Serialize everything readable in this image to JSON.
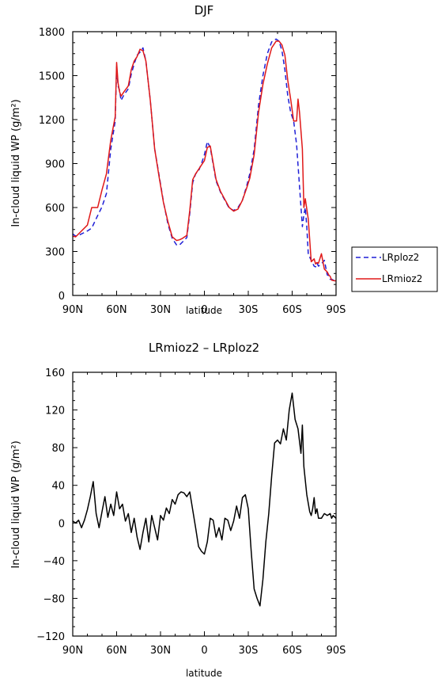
{
  "chart_data": [
    {
      "type": "line",
      "title": "DJF",
      "xlabel": "latitude",
      "ylabel": "In-cloud liquid WP  (g/m²)",
      "x_ticks": [
        "90N",
        "60N",
        "30N",
        "0",
        "30S",
        "60S",
        "90S"
      ],
      "xlim": [
        90,
        -90
      ],
      "ylim": [
        0,
        1800
      ],
      "y_ticks": [
        0,
        300,
        600,
        900,
        1200,
        1500,
        1800
      ],
      "grid": false,
      "legend_placement": "outside-right",
      "series": [
        {
          "name": "LRploz2",
          "color": "#1f1fd6",
          "dash": "dashed",
          "x": [
            90,
            88,
            85,
            80,
            77,
            73,
            70,
            67,
            64,
            61,
            60,
            59,
            58,
            57,
            55,
            52,
            50,
            48,
            46,
            44,
            42,
            40,
            37,
            34,
            31,
            28,
            25,
            22,
            19,
            17,
            15,
            12,
            10,
            8,
            6,
            4,
            2,
            0,
            -2,
            -4,
            -6,
            -8,
            -11,
            -14,
            -17,
            -20,
            -23,
            -26,
            -29,
            -31,
            -34,
            -37,
            -40,
            -43,
            -46,
            -49,
            -51,
            -53,
            -55,
            -57,
            -59,
            -61,
            -63,
            -65,
            -67,
            -68,
            -69,
            -70,
            -71,
            -73,
            -75,
            -76,
            -77,
            -78,
            -80,
            -82,
            -84,
            -85,
            -86,
            -87,
            -89,
            -90
          ],
          "y": [
            420,
            405,
            415,
            440,
            460,
            545,
            605,
            695,
            1000,
            1190,
            1560,
            1430,
            1400,
            1330,
            1370,
            1410,
            1510,
            1580,
            1640,
            1660,
            1690,
            1600,
            1330,
            1000,
            820,
            640,
            490,
            390,
            345,
            345,
            365,
            395,
            560,
            770,
            830,
            850,
            900,
            960,
            1050,
            1010,
            895,
            780,
            705,
            650,
            595,
            580,
            600,
            650,
            750,
            830,
            995,
            1300,
            1500,
            1650,
            1730,
            1750,
            1735,
            1670,
            1540,
            1365,
            1250,
            1190,
            1030,
            745,
            470,
            550,
            600,
            470,
            280,
            240,
            200,
            195,
            220,
            200,
            215,
            240,
            140,
            135,
            110,
            110,
            100,
            100
          ]
        },
        {
          "name": "LRmioz2",
          "color": "#e01818",
          "dash": "solid",
          "x": [
            90,
            88,
            85,
            80,
            77,
            73,
            70,
            67,
            64,
            61,
            60,
            59,
            58,
            57,
            55,
            52,
            50,
            48,
            46,
            44,
            42,
            40,
            37,
            34,
            31,
            28,
            25,
            22,
            19,
            17,
            15,
            12,
            10,
            8,
            6,
            4,
            2,
            0,
            -2,
            -4,
            -6,
            -8,
            -11,
            -14,
            -17,
            -20,
            -23,
            -26,
            -29,
            -31,
            -34,
            -37,
            -40,
            -43,
            -46,
            -49,
            -51,
            -53,
            -55,
            -57,
            -59,
            -61,
            -63,
            -64,
            -65,
            -67,
            -68,
            -69,
            -70,
            -71,
            -73,
            -75,
            -76,
            -77,
            -78,
            -80,
            -82,
            -84,
            -85,
            -86,
            -87,
            -89,
            -90
          ],
          "y": [
            405,
            400,
            430,
            480,
            600,
            600,
            720,
            830,
            1060,
            1220,
            1590,
            1450,
            1390,
            1360,
            1390,
            1430,
            1540,
            1600,
            1630,
            1680,
            1670,
            1600,
            1330,
            1000,
            810,
            635,
            505,
            400,
            375,
            380,
            390,
            410,
            580,
            790,
            830,
            860,
            890,
            920,
            1010,
            1020,
            905,
            790,
            710,
            655,
            600,
            575,
            590,
            650,
            735,
            800,
            960,
            1250,
            1440,
            1580,
            1690,
            1735,
            1735,
            1710,
            1640,
            1470,
            1340,
            1190,
            1190,
            1340,
            1250,
            1000,
            600,
            660,
            590,
            520,
            230,
            250,
            215,
            225,
            220,
            285,
            180,
            160,
            140,
            130,
            105,
            100,
            100
          ]
        }
      ]
    },
    {
      "type": "line",
      "title": "LRmioz2 – LRploz2",
      "xlabel": "latitude",
      "ylabel": "In-cloud liquid WP  (g/m²)",
      "x_ticks": [
        "90N",
        "60N",
        "30N",
        "0",
        "30S",
        "60S",
        "90S"
      ],
      "xlim": [
        90,
        -90
      ],
      "ylim": [
        -120,
        160
      ],
      "y_ticks": [
        -120,
        -80,
        -40,
        0,
        40,
        80,
        120,
        160
      ],
      "grid": false,
      "series": [
        {
          "color": "#000000",
          "dash": "solid",
          "x": [
            90,
            88,
            86,
            84,
            82,
            80,
            78,
            76,
            74,
            72,
            70,
            68,
            66,
            64,
            62,
            60,
            58,
            56,
            54,
            52,
            50,
            48,
            46,
            44,
            42,
            40,
            38,
            36,
            34,
            32,
            30,
            28,
            26,
            24,
            22,
            20,
            18,
            16,
            14,
            12,
            10,
            8,
            6,
            4,
            2,
            0,
            -2,
            -4,
            -6,
            -8,
            -10,
            -12,
            -14,
            -16,
            -18,
            -20,
            -22,
            -24,
            -26,
            -28,
            -30,
            -32,
            -34,
            -36,
            -38,
            -40,
            -42,
            -44,
            -46,
            -48,
            -50,
            -52,
            -54,
            -56,
            -58,
            -60,
            -62,
            -64,
            -66,
            -67,
            -68,
            -70,
            -72,
            -73,
            -74,
            -75,
            -76,
            -77,
            -78,
            -80,
            -82,
            -84,
            -86,
            -87,
            -88,
            -90
          ],
          "y": [
            2,
            0,
            3,
            -5,
            3,
            14,
            28,
            44,
            10,
            -5,
            12,
            28,
            6,
            20,
            8,
            33,
            15,
            20,
            2,
            10,
            -10,
            5,
            -15,
            -28,
            -10,
            5,
            -20,
            8,
            -5,
            -18,
            8,
            3,
            16,
            10,
            25,
            20,
            30,
            33,
            32,
            28,
            33,
            14,
            -5,
            -25,
            -30,
            -33,
            -20,
            5,
            3,
            -15,
            -5,
            -18,
            5,
            3,
            -8,
            2,
            18,
            5,
            27,
            30,
            15,
            -30,
            -70,
            -80,
            -88,
            -60,
            -20,
            10,
            50,
            85,
            88,
            84,
            100,
            88,
            120,
            138,
            110,
            100,
            74,
            104,
            60,
            30,
            12,
            8,
            15,
            27,
            10,
            15,
            5,
            5,
            10,
            8,
            10,
            5,
            8,
            5
          ]
        }
      ]
    }
  ]
}
